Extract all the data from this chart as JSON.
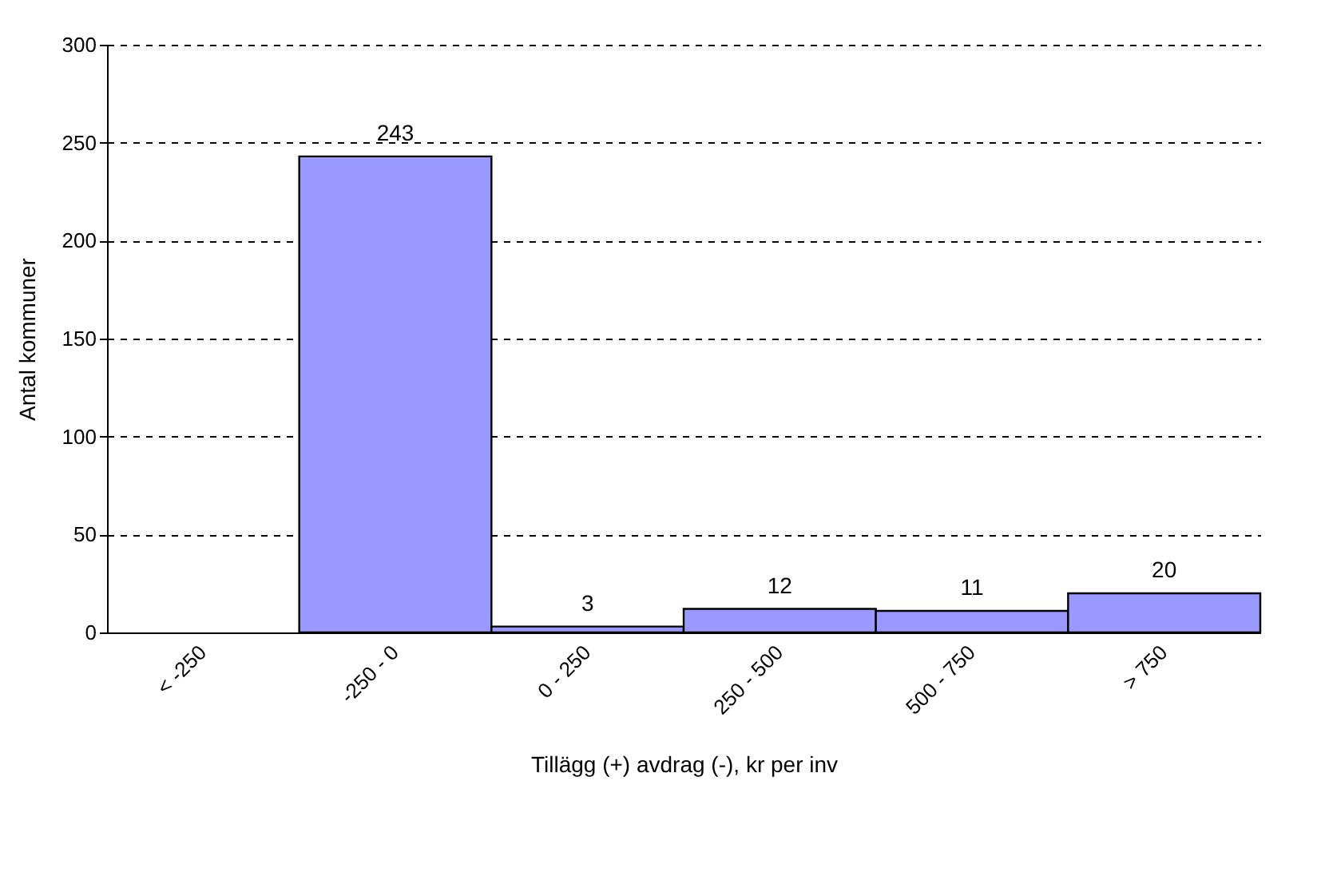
{
  "chart_data": {
    "type": "bar",
    "xlabel": "Tillägg (+) avdrag (-), kr per inv",
    "ylabel": "Antal kommuner",
    "categories": [
      "< -250",
      "-250 - 0",
      "0 - 250",
      "250 - 500",
      "500 - 750",
      "> 750"
    ],
    "values": [
      null,
      243,
      3,
      12,
      11,
      20
    ],
    "color": "#9999ff",
    "data_labels": true,
    "ylim": [
      0,
      300
    ],
    "yticks": [
      0,
      50,
      100,
      150,
      200,
      250,
      300
    ],
    "grid": "y"
  }
}
